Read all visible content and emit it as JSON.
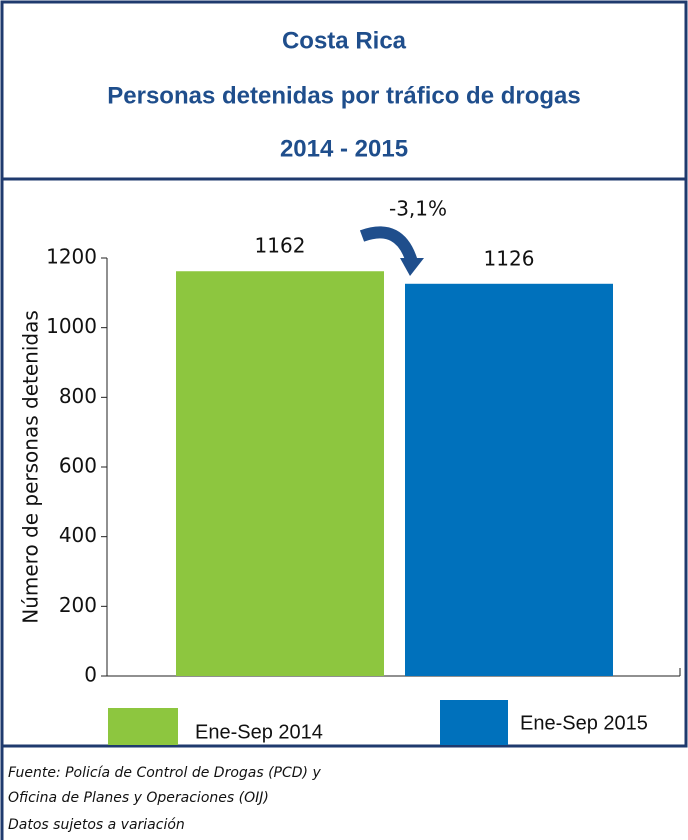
{
  "chart_data": {
    "type": "bar",
    "title": "Costa Rica",
    "subtitle": "Personas detenidas  por tráfico de drogas",
    "period": "2014 - 2015",
    "ylabel": "Número de personas detenidas",
    "categories": [
      "Ene-Sep 2014",
      "Ene-Sep 2015"
    ],
    "values": [
      1162,
      1126
    ],
    "colors": [
      "#8dc63f",
      "#0071bc"
    ],
    "annotation": "-3,1%",
    "ylim": [
      0,
      1200
    ],
    "yticks": [
      0,
      200,
      400,
      600,
      800,
      1000,
      1200
    ],
    "notes": [
      "Fuente: Policía de Control de Drogas (PCD) y",
      "Oficina de Planes y Operaciones (OIJ)",
      "Datos sujetos a variación"
    ]
  }
}
